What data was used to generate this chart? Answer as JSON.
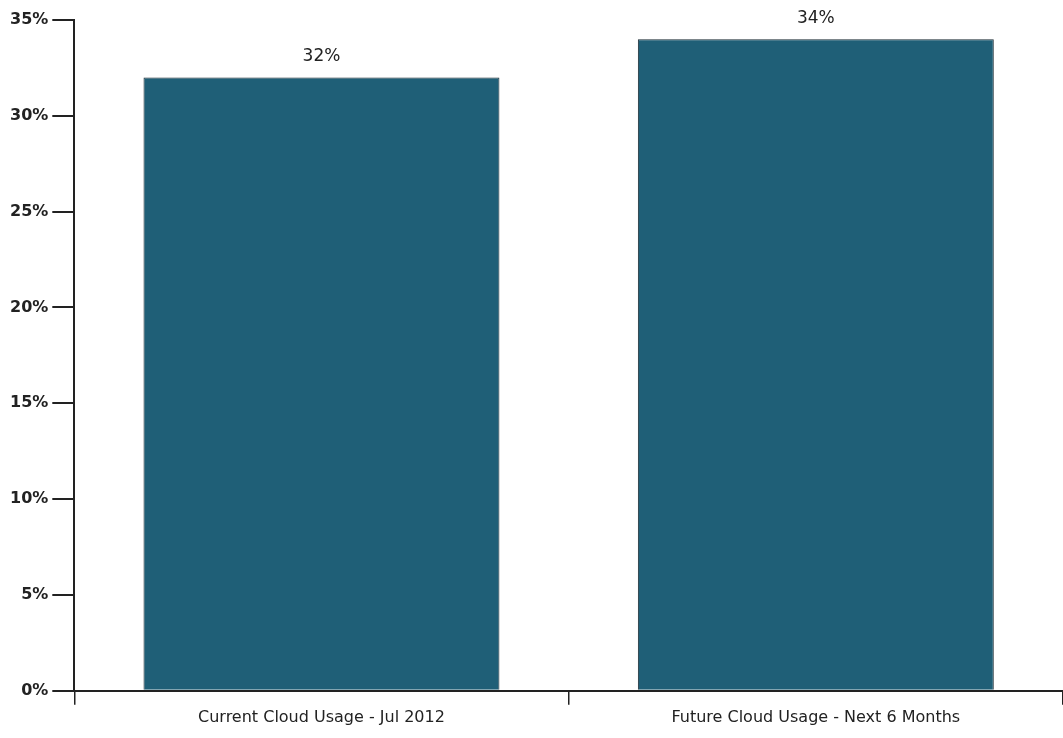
{
  "chart_data": {
    "type": "bar",
    "categories": [
      "Current Cloud Usage - Jul 2012",
      "Future Cloud Usage - Next 6 Months"
    ],
    "values": [
      32,
      34
    ],
    "color": "#1f5f77",
    "ylim": [
      0,
      35
    ],
    "yticks": [
      {
        "value": 0,
        "label": "0%"
      },
      {
        "value": 5,
        "label": "5%"
      },
      {
        "value": 10,
        "label": "10%"
      },
      {
        "value": 15,
        "label": "15%"
      },
      {
        "value": 20,
        "label": "20%"
      },
      {
        "value": 25,
        "label": "25%"
      },
      {
        "value": 30,
        "label": "30%"
      },
      {
        "value": 35,
        "label": "35%"
      }
    ],
    "value_labels": [
      "32%",
      "34%"
    ],
    "grid": false,
    "legend": false
  }
}
